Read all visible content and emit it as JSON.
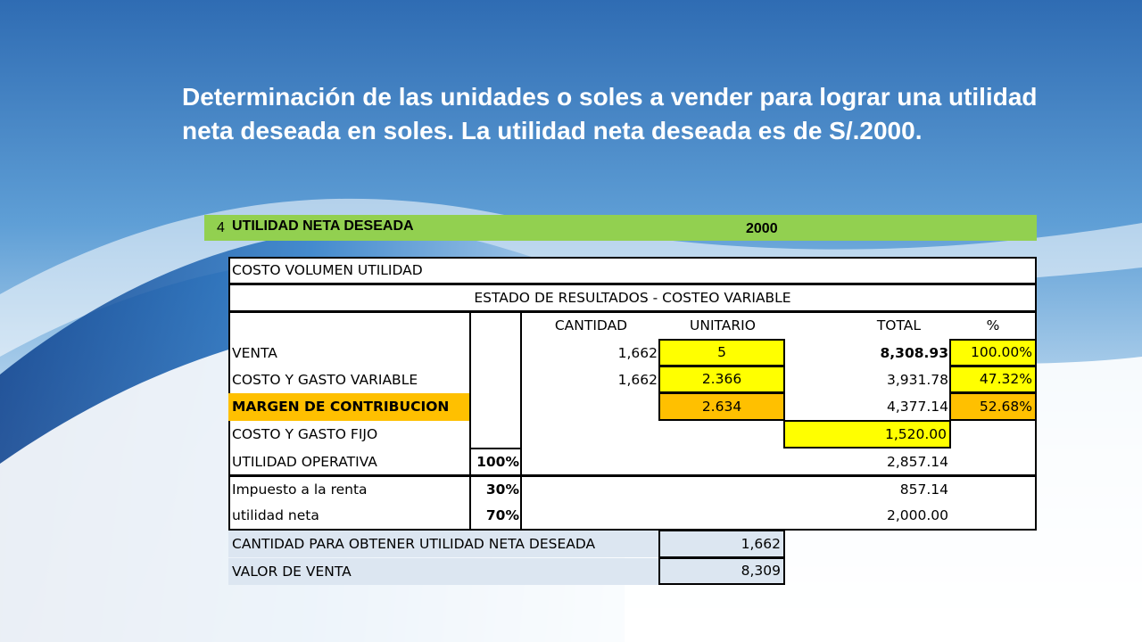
{
  "title": "Determinación de las unidades o soles a vender para lograr una utilidad neta deseada en soles. La utilidad neta deseada es de S/.2000.",
  "header_bar": {
    "number": "4",
    "label": "UTILIDAD NETA DESEADA",
    "value": "2000",
    "color": "#92d050"
  },
  "sheet": {
    "section_title": "COSTO VOLUMEN UTILIDAD",
    "subtitle": "ESTADO DE RESULTADOS - COSTEO VARIABLE",
    "columns": {
      "cantidad": "CANTIDAD",
      "unitario": "UNITARIO",
      "total": "TOTAL",
      "pct": "%"
    },
    "rows": {
      "venta": {
        "label": "VENTA",
        "cantidad": "1,662",
        "unitario": "5",
        "total": "8,308.93",
        "pct": "100.00%"
      },
      "costo_variable": {
        "label": "COSTO Y GASTO VARIABLE",
        "cantidad": "1,662",
        "unitario": "2.366",
        "total": "3,931.78",
        "pct": "47.32%"
      },
      "margen": {
        "label": "MARGEN DE CONTRIBUCION",
        "unitario": "2.634",
        "total": "4,377.14",
        "pct": "52.68%"
      },
      "costo_fijo": {
        "label": "COSTO Y GASTO FIJO",
        "total": "1,520.00"
      },
      "utilidad_operativa": {
        "label": "UTILIDAD OPERATIVA",
        "rate": "100%",
        "total": "2,857.14"
      },
      "impuesto": {
        "label": "Impuesto a la renta",
        "rate": "30%",
        "total": "857.14"
      },
      "utilidad_neta": {
        "label": "utilidad neta",
        "rate": "70%",
        "total": "2,000.00"
      }
    },
    "summary": {
      "cantidad_label": "CANTIDAD PARA OBTENER UTILIDAD NETA DESEADA",
      "cantidad_value": "1,662",
      "valor_label": "VALOR DE VENTA",
      "valor_value": "8,309"
    }
  },
  "colors": {
    "highlight_yellow": "#ffff00",
    "highlight_orange": "#ffc000",
    "summary_fill": "#dce6f1"
  }
}
